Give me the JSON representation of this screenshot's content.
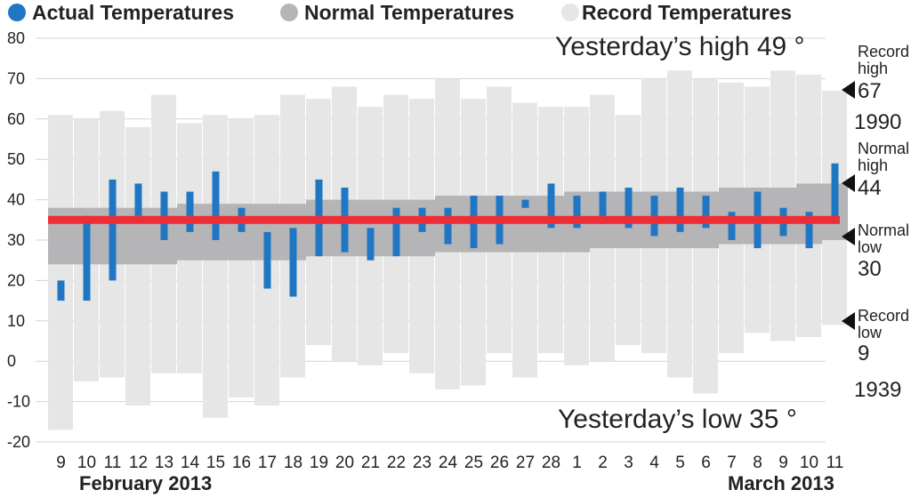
{
  "legend": [
    {
      "label": "Actual Temperatures",
      "color": "#1f77c4"
    },
    {
      "label": "Normal Temperatures",
      "color": "#b5b5b7"
    },
    {
      "label": "Record Temperatures",
      "color": "#e6e6e6"
    }
  ],
  "annotations": {
    "yesterday_high": "Yesterday’s high 49 °",
    "yesterday_low": "Yesterday’s low 35 °"
  },
  "months": {
    "left": "February 2013",
    "right": "March 2013"
  },
  "side_labels": {
    "record_high": {
      "line1": "Record",
      "line2": "high",
      "value": "67",
      "year": "1990"
    },
    "normal_high": {
      "line1": "Normal",
      "line2": "high",
      "value": "44"
    },
    "normal_low": {
      "line1": "Normal",
      "line2": "low",
      "value": "30"
    },
    "record_low": {
      "line1": "Record",
      "line2": "low",
      "value": "9",
      "year": "1939"
    }
  },
  "chart_data": {
    "type": "bar",
    "categories": [
      "9",
      "10",
      "11",
      "12",
      "13",
      "14",
      "15",
      "16",
      "17",
      "18",
      "19",
      "20",
      "21",
      "22",
      "23",
      "24",
      "25",
      "26",
      "27",
      "28",
      "1",
      "2",
      "3",
      "4",
      "5",
      "6",
      "7",
      "8",
      "9",
      "10",
      "11"
    ],
    "yticks": [
      80,
      70,
      60,
      50,
      40,
      30,
      20,
      10,
      0,
      -10,
      -20
    ],
    "ylim": [
      -20,
      80
    ],
    "reference_line": 35,
    "series": [
      {
        "name": "Record Temperatures",
        "high": [
          61,
          60,
          62,
          58,
          66,
          59,
          61,
          60,
          61,
          66,
          65,
          68,
          63,
          66,
          65,
          70,
          65,
          68,
          64,
          63,
          63,
          66,
          61,
          70,
          72,
          70,
          69,
          68,
          72,
          71,
          67
        ],
        "low": [
          -17,
          -5,
          -4,
          -11,
          -3,
          -3,
          -14,
          -9,
          -11,
          -4,
          4,
          0,
          -1,
          2,
          -3,
          -7,
          -6,
          2,
          -4,
          2,
          -1,
          0,
          4,
          2,
          -4,
          -8,
          2,
          7,
          5,
          6,
          9
        ]
      },
      {
        "name": "Normal Temperatures",
        "high": [
          38,
          38,
          38,
          38,
          38,
          39,
          39,
          39,
          39,
          39,
          40,
          40,
          40,
          40,
          40,
          41,
          41,
          41,
          41,
          41,
          42,
          42,
          42,
          42,
          42,
          42,
          43,
          43,
          43,
          44,
          44
        ],
        "low": [
          24,
          24,
          24,
          24,
          24,
          25,
          25,
          25,
          25,
          25,
          26,
          26,
          26,
          26,
          26,
          27,
          27,
          27,
          27,
          27,
          27,
          28,
          28,
          28,
          28,
          28,
          29,
          29,
          29,
          29,
          30
        ]
      },
      {
        "name": "Actual Temperatures",
        "high": [
          20,
          36,
          45,
          44,
          42,
          42,
          47,
          38,
          32,
          33,
          45,
          43,
          33,
          38,
          38,
          38,
          41,
          41,
          40,
          44,
          41,
          42,
          43,
          41,
          43,
          41,
          37,
          42,
          38,
          37,
          49
        ],
        "low": [
          15,
          15,
          20,
          36,
          30,
          32,
          30,
          32,
          18,
          16,
          26,
          27,
          25,
          26,
          32,
          29,
          28,
          29,
          38,
          33,
          33,
          34,
          33,
          31,
          32,
          33,
          30,
          28,
          31,
          28,
          35
        ]
      }
    ]
  }
}
